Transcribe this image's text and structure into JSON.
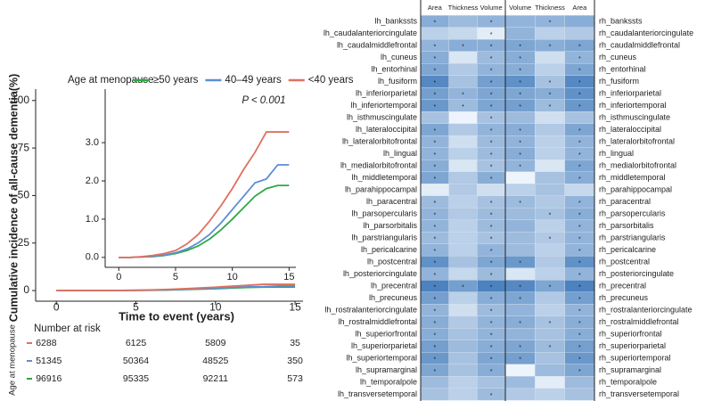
{
  "chart_data": [
    {
      "type": "line",
      "y_label": "Cumulative incidence of all-cause dementia(%)",
      "x_label": "Time to event (years)",
      "legend_title": "Age at menopause",
      "annotation": "P < 0.001",
      "x": [
        0,
        1,
        2,
        3,
        4,
        5,
        6,
        7,
        8,
        9,
        10,
        11,
        12,
        13,
        14,
        15
      ],
      "series": [
        {
          "name": "≥50 years",
          "color": "#2ea844",
          "values": [
            0,
            0,
            0.01,
            0.02,
            0.05,
            0.1,
            0.18,
            0.3,
            0.48,
            0.72,
            1.0,
            1.3,
            1.6,
            1.8,
            1.88,
            1.88
          ]
        },
        {
          "name": "40–49 years",
          "color": "#5b8fd4",
          "values": [
            0,
            0,
            0.01,
            0.03,
            0.06,
            0.12,
            0.22,
            0.38,
            0.6,
            0.9,
            1.25,
            1.6,
            1.95,
            2.05,
            2.42,
            2.42
          ]
        },
        {
          "name": "<40 years",
          "color": "#e07060",
          "values": [
            0,
            0,
            0.02,
            0.05,
            0.1,
            0.18,
            0.35,
            0.6,
            0.95,
            1.35,
            1.8,
            2.3,
            2.75,
            3.28,
            3.28,
            3.28
          ]
        }
      ],
      "xlim": [
        -1.3,
        15.5
      ],
      "ylim": [
        -5.6,
        106
      ],
      "xticks": [
        0,
        5,
        10,
        15
      ],
      "yticks": [
        0,
        25,
        50,
        75,
        100
      ],
      "inset": {
        "xlim": [
          -1.2,
          15.6
        ],
        "ylim": [
          -0.26,
          4.4
        ],
        "xticks": [
          0,
          5,
          10,
          15
        ],
        "yticks": [
          {
            "value": 0,
            "label": "0.0"
          },
          {
            "value": 1,
            "label": "1.0"
          },
          {
            "value": 2,
            "label": "2.0"
          },
          {
            "value": 3,
            "label": "3.0"
          }
        ]
      },
      "risk_table": {
        "title": "Number at risk",
        "label": "Age at menopause",
        "rows": [
          {
            "color": "#e07060",
            "values": [
              6288,
              6125,
              5809,
              35
            ]
          },
          {
            "color": "#5b8fd4",
            "values": [
              51345,
              50364,
              48525,
              350
            ]
          },
          {
            "color": "#2ea844",
            "values": [
              96916,
              95335,
              92211,
              573
            ]
          }
        ]
      }
    },
    {
      "type": "heatmap",
      "columns": [
        "Area",
        "Thickness",
        "Volume",
        "Volume",
        "Thickness",
        "Area"
      ],
      "rows_left": [
        "lh_bankssts",
        "lh_caudalanteriorcingulate",
        "lh_caudalmiddlefrontal",
        "lh_cuneus",
        "lh_entorhinal",
        "lh_fusiform",
        "lh_inferiorparietal",
        "lh_inferiortemporal",
        "lh_isthmuscingulate",
        "lh_lateraloccipital",
        "lh_lateralorbitofrontal",
        "lh_lingual",
        "lh_medialorbitofrontal",
        "lh_middletemporal",
        "lh_parahippocampal",
        "lh_paracentral",
        "lh_parsopercularis",
        "lh_parsorbitalis",
        "lh_parstriangularis",
        "lh_pericalcarine",
        "lh_postcentral",
        "lh_posteriorcingulate",
        "lh_precentral",
        "lh_precuneus",
        "lh_rostralanteriorcingulate",
        "lh_rostralmiddlefrontal",
        "lh_superiorfrontal",
        "lh_superiorparietal",
        "lh_superiortemporal",
        "lh_supramarginal",
        "lh_temporalpole",
        "lh_transversetemporal"
      ],
      "rows_right": [
        "rh_bankssts",
        "rh_caudalanteriorcingulate",
        "rh_caudalmiddlefrontal",
        "rh_cuneus",
        "rh_entorhinal",
        "rh_fusiform",
        "rh_inferiorparietal",
        "rh_inferiortemporal",
        "rh_isthmuscingulate",
        "rh_lateraloccipital",
        "rh_lateralorbitofrontal",
        "rh_lingual",
        "rh_medialorbitofrontal",
        "rh_middletemporal",
        "rh_parahippocampal",
        "rh_paracentral",
        "rh_parsopercularis",
        "rh_parsorbitalis",
        "rh_parstriangularis",
        "rh_pericalcarine",
        "rh_postcentral",
        "rh_posteriorcingulate",
        "rh_precentral",
        "rh_precuneus",
        "rh_rostralanteriorcingulate",
        "rh_rostralmiddlefrontal",
        "rh_superiorfrontal",
        "rh_superiorparietal",
        "rh_superiortemporal",
        "rh_supramarginal",
        "rh_temporalpole",
        "rh_transversetemporal"
      ],
      "zlim": [
        0,
        1
      ],
      "colors": [
        "#f7fbff",
        "#2e6db4"
      ],
      "values": [
        [
          0.55,
          0.45,
          0.5,
          0.5,
          0.5,
          0.55
        ],
        [
          0.3,
          0.25,
          0.1,
          0.5,
          0.3,
          0.35
        ],
        [
          0.5,
          0.55,
          0.55,
          0.6,
          0.55,
          0.6
        ],
        [
          0.55,
          0.15,
          0.45,
          0.55,
          0.2,
          0.5
        ],
        [
          0.6,
          0.35,
          0.5,
          0.55,
          0.3,
          0.6
        ],
        [
          0.8,
          0.4,
          0.65,
          0.75,
          0.4,
          0.8
        ],
        [
          0.65,
          0.5,
          0.6,
          0.6,
          0.55,
          0.75
        ],
        [
          0.7,
          0.45,
          0.6,
          0.65,
          0.45,
          0.7
        ],
        [
          0.4,
          0.05,
          0.4,
          0.45,
          0.2,
          0.4
        ],
        [
          0.6,
          0.35,
          0.5,
          0.55,
          0.35,
          0.6
        ],
        [
          0.5,
          0.2,
          0.45,
          0.5,
          0.3,
          0.5
        ],
        [
          0.5,
          0.3,
          0.45,
          0.55,
          0.3,
          0.5
        ],
        [
          0.55,
          0.15,
          0.4,
          0.5,
          0.15,
          0.6
        ],
        [
          0.6,
          0.35,
          0.55,
          0.05,
          0.4,
          0.55
        ],
        [
          0.1,
          0.35,
          0.2,
          0.3,
          0.4,
          0.25
        ],
        [
          0.45,
          0.3,
          0.4,
          0.45,
          0.35,
          0.5
        ],
        [
          0.5,
          0.35,
          0.45,
          0.45,
          0.4,
          0.55
        ],
        [
          0.5,
          0.3,
          0.45,
          0.5,
          0.3,
          0.5
        ],
        [
          0.45,
          0.3,
          0.4,
          0.45,
          0.35,
          0.5
        ],
        [
          0.5,
          0.3,
          0.5,
          0.45,
          0.3,
          0.5
        ],
        [
          0.75,
          0.4,
          0.6,
          0.7,
          0.35,
          0.75
        ],
        [
          0.5,
          0.25,
          0.45,
          0.15,
          0.3,
          0.5
        ],
        [
          0.85,
          0.65,
          0.85,
          0.8,
          0.6,
          0.85
        ],
        [
          0.65,
          0.3,
          0.55,
          0.6,
          0.35,
          0.65
        ],
        [
          0.5,
          0.2,
          0.45,
          0.5,
          0.3,
          0.5
        ],
        [
          0.55,
          0.35,
          0.5,
          0.55,
          0.4,
          0.55
        ],
        [
          0.55,
          0.4,
          0.5,
          0.5,
          0.4,
          0.55
        ],
        [
          0.65,
          0.45,
          0.55,
          0.6,
          0.45,
          0.65
        ],
        [
          0.7,
          0.4,
          0.6,
          0.65,
          0.4,
          0.7
        ],
        [
          0.6,
          0.4,
          0.55,
          0.05,
          0.45,
          0.6
        ],
        [
          0.45,
          0.3,
          0.4,
          0.45,
          0.1,
          0.45
        ],
        [
          0.4,
          0.3,
          0.45,
          0.35,
          0.3,
          0.4
        ]
      ],
      "stars": [
        [
          "*",
          null,
          "*",
          null,
          "*",
          null
        ],
        [
          null,
          null,
          "*",
          null,
          null,
          null
        ],
        [
          "*",
          "*",
          "*",
          "*",
          "*",
          "*"
        ],
        [
          "*",
          null,
          "*",
          "*",
          null,
          "*"
        ],
        [
          "*",
          null,
          "*",
          "*",
          null,
          "*"
        ],
        [
          "*",
          null,
          "*",
          "*",
          "*",
          "*"
        ],
        [
          "*",
          "*",
          "*",
          "*",
          "*",
          "*"
        ],
        [
          "*",
          "*",
          "*",
          "*",
          "*",
          "*"
        ],
        [
          null,
          null,
          "*",
          null,
          null,
          null
        ],
        [
          "*",
          null,
          "*",
          "*",
          null,
          "*"
        ],
        [
          "*",
          null,
          "*",
          "*",
          null,
          "*"
        ],
        [
          "*",
          null,
          "*",
          "*",
          null,
          "*"
        ],
        [
          "*",
          null,
          "*",
          "*",
          null,
          "*"
        ],
        [
          "*",
          null,
          "*",
          null,
          null,
          "*"
        ],
        [
          null,
          null,
          null,
          null,
          null,
          null
        ],
        [
          "*",
          null,
          "*",
          "*",
          null,
          "*"
        ],
        [
          "*",
          null,
          "*",
          null,
          "*",
          "*"
        ],
        [
          "*",
          null,
          "*",
          null,
          null,
          "*"
        ],
        [
          "*",
          null,
          "*",
          null,
          "*",
          "*"
        ],
        [
          "*",
          null,
          "*",
          null,
          null,
          "*"
        ],
        [
          "*",
          null,
          "*",
          "*",
          null,
          "*"
        ],
        [
          "*",
          null,
          "*",
          null,
          null,
          "*"
        ],
        [
          "*",
          "*",
          "*",
          "*",
          "*",
          "*"
        ],
        [
          "*",
          null,
          "*",
          "*",
          null,
          "*"
        ],
        [
          "*",
          null,
          "*",
          null,
          null,
          "*"
        ],
        [
          "*",
          null,
          "*",
          "*",
          "*",
          "*"
        ],
        [
          "*",
          null,
          "*",
          null,
          null,
          "*"
        ],
        [
          "*",
          null,
          "*",
          "*",
          "*",
          "*"
        ],
        [
          "*",
          null,
          "*",
          "*",
          null,
          "*"
        ],
        [
          "*",
          null,
          "*",
          null,
          null,
          "*"
        ],
        [
          null,
          null,
          null,
          null,
          null,
          null
        ],
        [
          null,
          null,
          "*",
          null,
          null,
          null
        ]
      ]
    }
  ]
}
